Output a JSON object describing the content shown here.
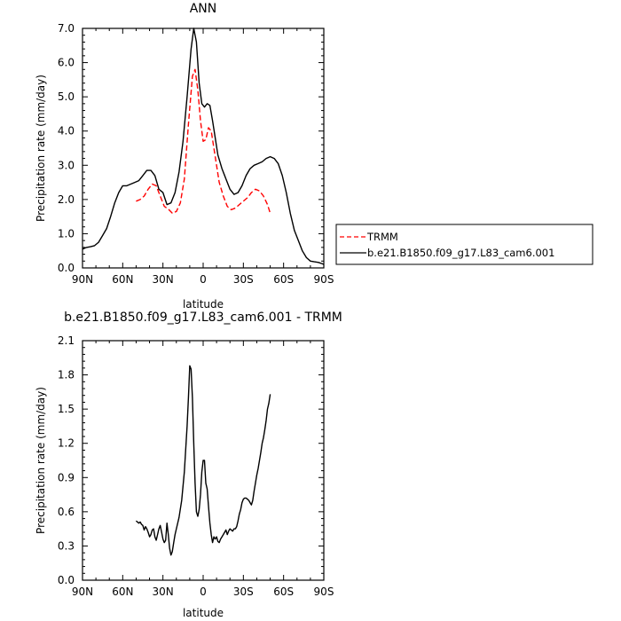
{
  "chart_data": [
    {
      "type": "line",
      "title": "ANN",
      "xlabel": "latitude",
      "ylabel": "Precipitation rate (mm/day)",
      "xlim": [
        -90,
        90
      ],
      "ylim": [
        0,
        7
      ],
      "x_tick_values": [
        -90,
        -60,
        -30,
        0,
        30,
        60,
        90
      ],
      "x_tick_labels": [
        "90N",
        "60N",
        "30N",
        "0",
        "30S",
        "60S",
        "90S"
      ],
      "y_tick_values": [
        0,
        1,
        2,
        3,
        4,
        5,
        6,
        7
      ],
      "y_tick_labels": [
        "0.0",
        "1.0",
        "2.0",
        "3.0",
        "4.0",
        "5.0",
        "6.0",
        "7.0"
      ],
      "legend_position": "right-outside",
      "series": [
        {
          "name": "TRMM",
          "color": "#ff0000",
          "dash": "dashed",
          "x": [
            -50,
            -47,
            -44,
            -41,
            -38,
            -35,
            -32,
            -29,
            -26,
            -23,
            -20,
            -17,
            -14,
            -11,
            -8,
            -6,
            -4,
            -2,
            0,
            2,
            4,
            6,
            8,
            10,
            12,
            15,
            18,
            21,
            24,
            27,
            30,
            33,
            36,
            39,
            42,
            45,
            48,
            50
          ],
          "y": [
            1.95,
            2.0,
            2.1,
            2.3,
            2.45,
            2.4,
            2.1,
            1.8,
            1.72,
            1.6,
            1.65,
            1.9,
            2.6,
            4.2,
            5.6,
            5.8,
            5.2,
            4.3,
            3.7,
            3.75,
            4.1,
            4.0,
            3.5,
            3.0,
            2.5,
            2.1,
            1.8,
            1.7,
            1.75,
            1.85,
            1.95,
            2.05,
            2.2,
            2.3,
            2.25,
            2.1,
            1.85,
            1.6
          ]
        },
        {
          "name": "b.e21.B1850.f09_g17.L83_cam6.001",
          "color": "#000000",
          "dash": "solid",
          "x": [
            -90,
            -87,
            -84,
            -81,
            -78,
            -75,
            -72,
            -69,
            -66,
            -63,
            -60,
            -57,
            -54,
            -51,
            -48,
            -45,
            -42,
            -39,
            -36,
            -33,
            -30,
            -27,
            -24,
            -21,
            -18,
            -15,
            -12,
            -9,
            -7,
            -5,
            -3,
            -1,
            1,
            3,
            5,
            7,
            9,
            11,
            14,
            17,
            20,
            23,
            26,
            29,
            32,
            35,
            38,
            41,
            44,
            47,
            50,
            53,
            56,
            59,
            62,
            65,
            68,
            71,
            74,
            77,
            80,
            83,
            86,
            89,
            90
          ],
          "y": [
            0.55,
            0.6,
            0.62,
            0.65,
            0.75,
            0.95,
            1.15,
            1.5,
            1.9,
            2.2,
            2.4,
            2.4,
            2.45,
            2.5,
            2.55,
            2.7,
            2.85,
            2.85,
            2.7,
            2.3,
            2.2,
            1.85,
            1.9,
            2.2,
            2.8,
            3.7,
            5.0,
            6.4,
            7.0,
            6.6,
            5.4,
            4.8,
            4.7,
            4.8,
            4.75,
            4.3,
            3.8,
            3.3,
            2.9,
            2.6,
            2.3,
            2.15,
            2.2,
            2.4,
            2.7,
            2.9,
            3.0,
            3.05,
            3.1,
            3.2,
            3.25,
            3.2,
            3.05,
            2.7,
            2.2,
            1.6,
            1.1,
            0.8,
            0.5,
            0.3,
            0.2,
            0.18,
            0.16,
            0.12,
            0.1
          ]
        }
      ]
    },
    {
      "type": "line",
      "title": "b.e21.B1850.f09_g17.L83_cam6.001 - TRMM",
      "xlabel": "latitude",
      "ylabel": "Precipitation rate (mm/day)",
      "xlim": [
        -90,
        90
      ],
      "ylim": [
        0,
        2.1
      ],
      "x_tick_values": [
        -90,
        -60,
        -30,
        0,
        30,
        60,
        90
      ],
      "x_tick_labels": [
        "90N",
        "60N",
        "30N",
        "0",
        "30S",
        "60S",
        "90S"
      ],
      "y_tick_values": [
        0,
        0.3,
        0.6,
        0.9,
        1.2,
        1.5,
        1.8,
        2.1
      ],
      "y_tick_labels": [
        "0.0",
        "0.3",
        "0.6",
        "0.9",
        "1.2",
        "1.5",
        "1.8",
        "2.1"
      ],
      "series": [
        {
          "color": "#000000",
          "dash": "solid",
          "x": [
            -50,
            -48,
            -47,
            -46,
            -45,
            -44,
            -43,
            -42,
            -41,
            -40,
            -39,
            -38,
            -37,
            -36,
            -35,
            -34,
            -33,
            -32,
            -31,
            -30,
            -29,
            -28,
            -27,
            -26,
            -25,
            -24,
            -23,
            -22,
            -21,
            -20,
            -18,
            -16,
            -14,
            -12,
            -11,
            -10,
            -9,
            -8,
            -7,
            -6,
            -5,
            -4,
            -3,
            -2,
            -1,
            0,
            1,
            2,
            3,
            4,
            5,
            6,
            7,
            8,
            9,
            10,
            11,
            12,
            13,
            14,
            15,
            16,
            17,
            18,
            19,
            20,
            21,
            22,
            23,
            24,
            25,
            26,
            27,
            28,
            29,
            30,
            31,
            32,
            33,
            34,
            35,
            36,
            37,
            38,
            39,
            40,
            41,
            42,
            43,
            44,
            45,
            46,
            47,
            48,
            49,
            50
          ],
          "y": [
            0.52,
            0.5,
            0.51,
            0.49,
            0.48,
            0.44,
            0.47,
            0.45,
            0.42,
            0.38,
            0.4,
            0.44,
            0.45,
            0.38,
            0.35,
            0.4,
            0.45,
            0.48,
            0.42,
            0.36,
            0.33,
            0.35,
            0.5,
            0.4,
            0.28,
            0.22,
            0.25,
            0.33,
            0.4,
            0.45,
            0.55,
            0.7,
            0.95,
            1.35,
            1.6,
            1.88,
            1.85,
            1.6,
            1.2,
            0.85,
            0.6,
            0.56,
            0.62,
            0.75,
            0.95,
            1.05,
            1.05,
            0.85,
            0.8,
            0.65,
            0.5,
            0.4,
            0.33,
            0.38,
            0.36,
            0.38,
            0.34,
            0.33,
            0.36,
            0.38,
            0.4,
            0.42,
            0.44,
            0.4,
            0.43,
            0.45,
            0.44,
            0.43,
            0.45,
            0.45,
            0.47,
            0.52,
            0.58,
            0.62,
            0.68,
            0.71,
            0.72,
            0.72,
            0.71,
            0.7,
            0.68,
            0.66,
            0.7,
            0.78,
            0.85,
            0.92,
            0.98,
            1.05,
            1.12,
            1.2,
            1.25,
            1.32,
            1.4,
            1.5,
            1.55,
            1.63
          ]
        }
      ]
    }
  ]
}
